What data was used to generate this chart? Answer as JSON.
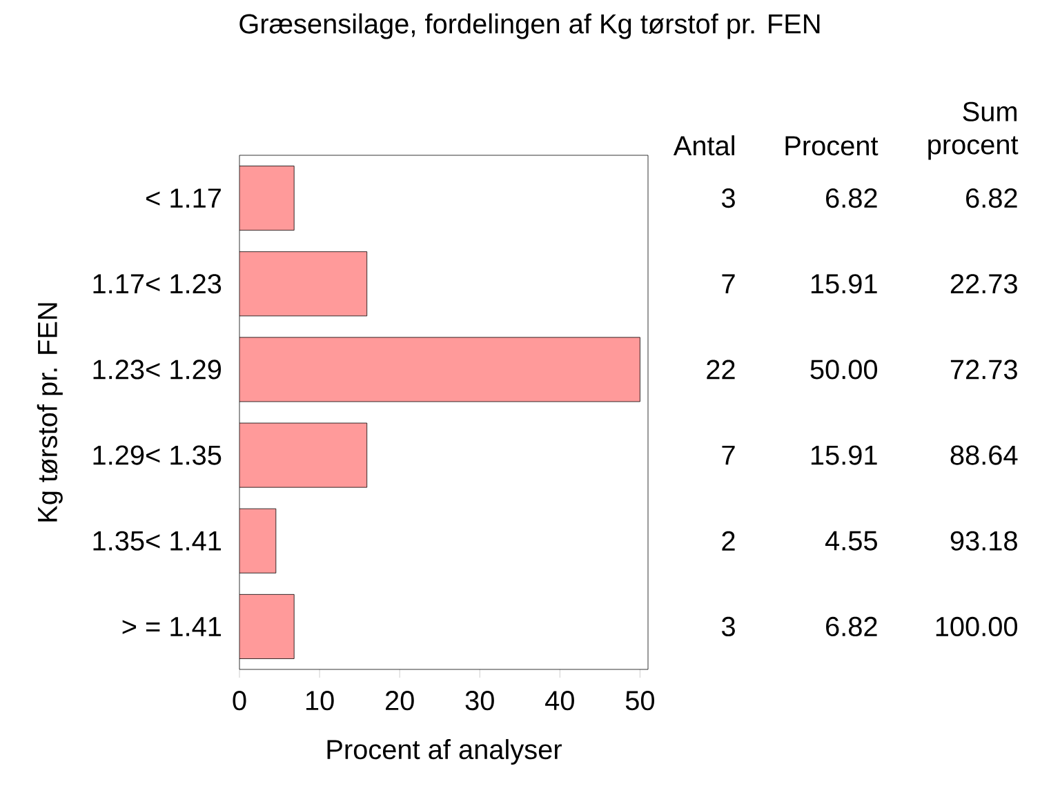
{
  "chart_data": {
    "type": "bar",
    "orientation": "horizontal",
    "title": "Græsensilage, fordelingen af Kg tørstof pr. FEN",
    "xlabel": "Procent af analyser",
    "ylabel": "Kg tørstof pr. FEN",
    "categories": [
      "< 1.17",
      "1.17< 1.23",
      "1.23< 1.29",
      "1.29< 1.35",
      "1.35< 1.41",
      "> = 1.41"
    ],
    "values": [
      6.82,
      15.91,
      50.0,
      15.91,
      4.55,
      6.82
    ],
    "value_labels": [
      "6.82",
      "15.91",
      "50.00",
      "15.91",
      "4.55",
      "6.82"
    ],
    "color": "#ff9a9a",
    "xlim": [
      0,
      51
    ],
    "xticks": [
      0,
      10,
      20,
      30,
      40,
      50
    ],
    "annotations": [
      "Antal",
      "Procent",
      "Sum procent",
      "3",
      "7",
      "22",
      "7",
      "2",
      "3",
      "6.82",
      "22.73",
      "72.73",
      "88.64",
      "93.18",
      "100.00"
    ]
  }
}
